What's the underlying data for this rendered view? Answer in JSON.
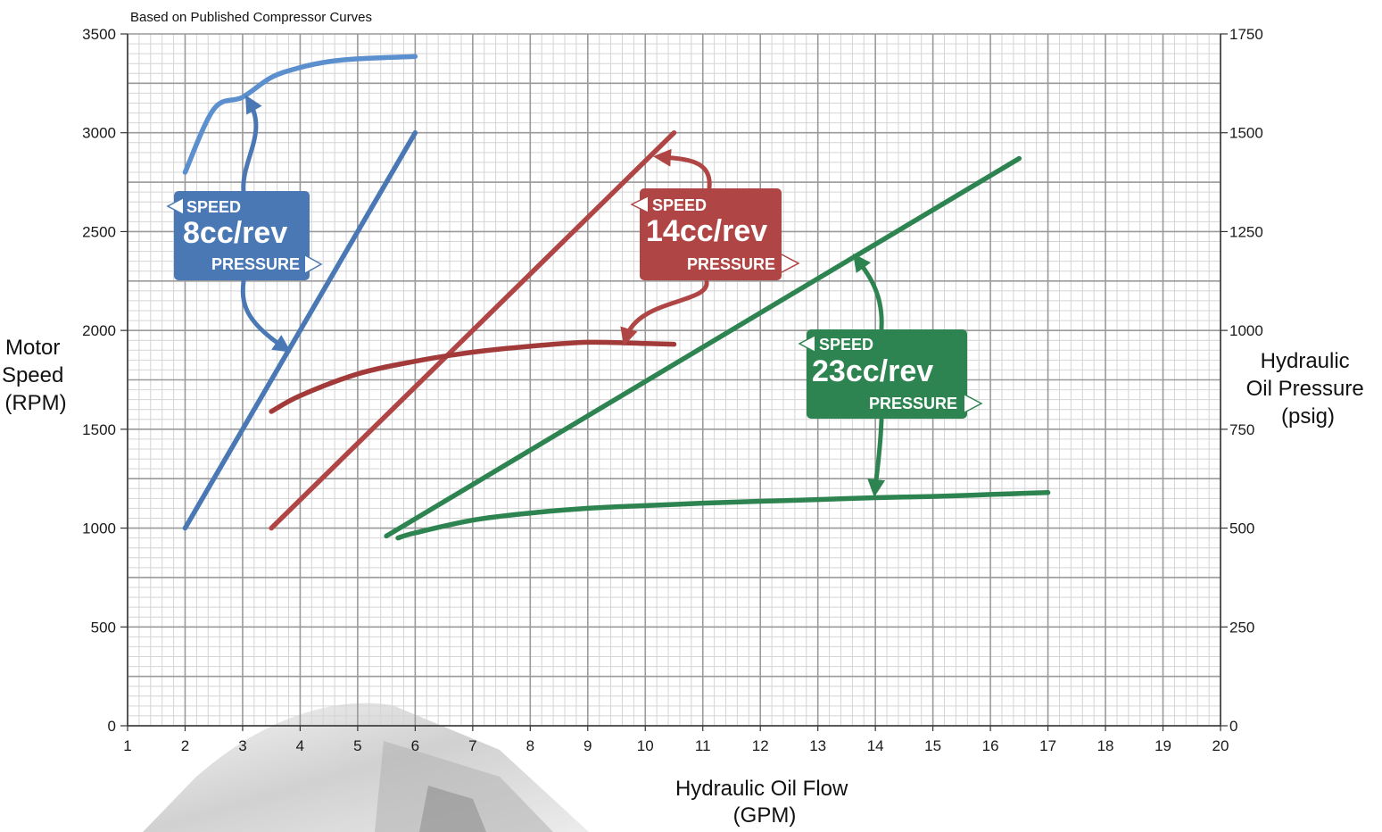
{
  "chart_data": {
    "type": "line",
    "title": "Based on Published Compressor Curves",
    "xlabel": [
      "Hydraulic Oil Flow",
      "(GPM)"
    ],
    "ylabel_left": [
      "Motor",
      "Speed",
      "(RPM)"
    ],
    "ylabel_right": [
      "Hydraulic",
      "Oil Pressure",
      "(psig)"
    ],
    "xlim": [
      1,
      20
    ],
    "ylim_left": [
      0,
      3500
    ],
    "ylim_right": [
      0,
      1750
    ],
    "x_ticks": [
      1,
      2,
      3,
      4,
      5,
      6,
      7,
      8,
      9,
      10,
      11,
      12,
      13,
      14,
      15,
      16,
      17,
      18,
      19,
      20
    ],
    "y_ticks_left": [
      0,
      500,
      1000,
      1500,
      2000,
      2500,
      3000,
      3500
    ],
    "y_ticks_right": [
      0,
      250,
      500,
      750,
      1000,
      1250,
      1500,
      1750
    ],
    "grid": true,
    "colors": {
      "blue": "#4a78b4",
      "blue_light": "#5b8fce",
      "red": "#b04545",
      "red_dark": "#a33a3a",
      "green": "#2e8451"
    },
    "series": [
      {
        "color": "blue",
        "axis": "left",
        "x": [
          2,
          6
        ],
        "y": [
          1000,
          3000
        ]
      },
      {
        "color": "blue_light",
        "axis": "right",
        "x": [
          2,
          2.5,
          3,
          3.5,
          4,
          4.5,
          5,
          6
        ],
        "y": [
          1400,
          1560,
          1590,
          1640,
          1665,
          1680,
          1687,
          1693
        ]
      },
      {
        "color": "red",
        "axis": "left",
        "x": [
          3.5,
          10.5
        ],
        "y": [
          1000,
          3000
        ]
      },
      {
        "color": "red_dark",
        "axis": "right",
        "x": [
          3.5,
          4,
          5,
          6,
          7,
          8,
          9,
          10,
          10.5
        ],
        "y": [
          795,
          835,
          890,
          922,
          945,
          960,
          970,
          967,
          965
        ]
      },
      {
        "color": "green",
        "axis": "left",
        "x": [
          5.5,
          16.5
        ],
        "y": [
          960,
          2870
        ]
      },
      {
        "color": "green",
        "axis": "right",
        "x": [
          5.7,
          6,
          7,
          8,
          9,
          10,
          11,
          12,
          13,
          14,
          15,
          16,
          17
        ],
        "y": [
          475,
          488,
          520,
          538,
          550,
          557,
          563,
          568,
          572,
          577,
          580,
          585,
          590
        ]
      }
    ],
    "annotations": [
      {
        "color": "blue",
        "speed_label": "SPEED",
        "title": "8cc/rev",
        "pressure_label": "PRESSURE"
      },
      {
        "color": "red",
        "speed_label": "SPEED",
        "title": "14cc/rev",
        "pressure_label": "PRESSURE"
      },
      {
        "color": "green",
        "speed_label": "SPEED",
        "title": "23cc/rev",
        "pressure_label": "PRESSURE"
      }
    ]
  }
}
